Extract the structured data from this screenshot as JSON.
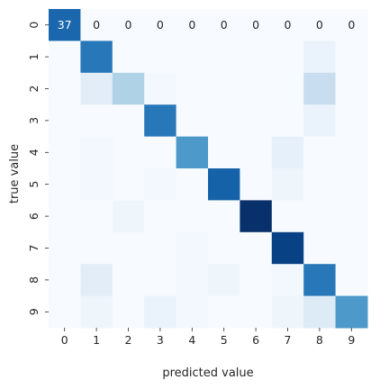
{
  "chart_data": {
    "type": "heatmap",
    "title": "",
    "xlabel": "predicted value",
    "ylabel": "true value",
    "x_categories": [
      "0",
      "1",
      "2",
      "3",
      "4",
      "5",
      "6",
      "7",
      "8",
      "9"
    ],
    "y_categories": [
      "0",
      "1",
      "2",
      "3",
      "4",
      "5",
      "6",
      "7",
      "8",
      "9"
    ],
    "colormap": "Blues",
    "colorbar": false,
    "annotations_shown_in_row": "0",
    "vmax": 47,
    "matrix": [
      [
        37,
        0,
        0,
        0,
        0,
        0,
        0,
        0,
        0,
        0
      ],
      [
        0,
        34,
        0,
        0,
        0,
        0,
        0,
        0,
        3,
        0
      ],
      [
        0,
        5,
        15,
        1,
        0,
        0,
        0,
        0,
        11,
        0
      ],
      [
        0,
        0,
        0,
        34,
        0,
        0,
        0,
        0,
        3,
        0
      ],
      [
        0,
        1,
        0,
        0,
        28,
        0,
        0,
        4,
        0,
        0
      ],
      [
        0,
        1,
        0,
        1,
        0,
        38,
        0,
        2,
        0,
        0
      ],
      [
        0,
        0,
        2,
        0,
        0,
        0,
        47,
        0,
        0,
        0
      ],
      [
        0,
        0,
        0,
        0,
        1,
        0,
        0,
        44,
        0,
        0
      ],
      [
        0,
        5,
        0,
        0,
        1,
        2,
        0,
        1,
        34,
        0
      ],
      [
        0,
        2,
        0,
        3,
        1,
        0,
        0,
        2,
        6,
        28
      ]
    ]
  }
}
